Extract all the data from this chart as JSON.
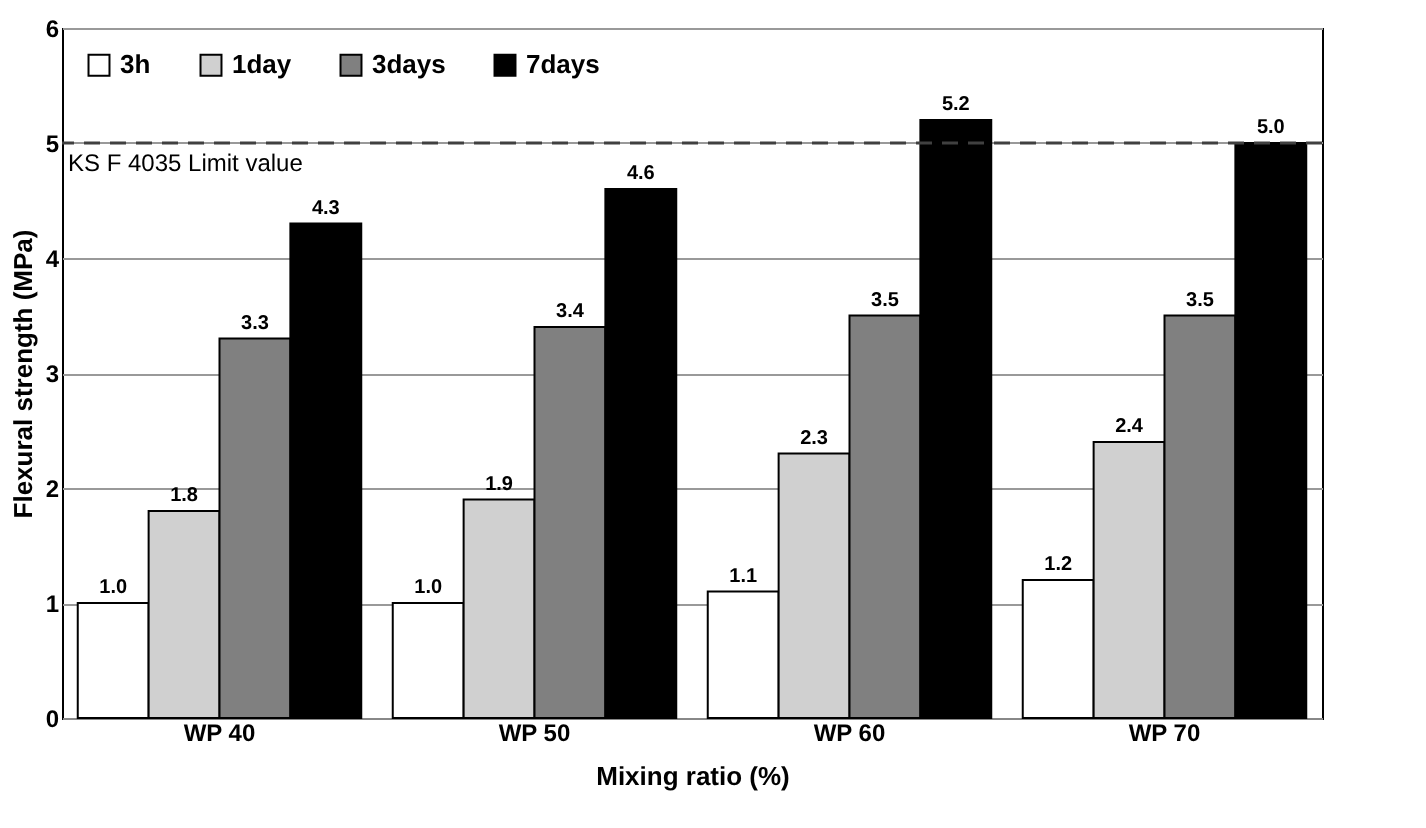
{
  "chart_data": {
    "type": "bar",
    "xlabel": "Mixing ratio (%)",
    "ylabel": "Flexural strength (MPa)",
    "categories": [
      "WP 40",
      "WP 50",
      "WP 60",
      "WP 70"
    ],
    "series": [
      {
        "name": "3h",
        "color": "#ffffff",
        "values": [
          1.0,
          1.0,
          1.1,
          1.2
        ],
        "value_labels": [
          "1.0",
          "1.0",
          "1.1",
          "1.2"
        ]
      },
      {
        "name": "1day",
        "color": "#d0d0d0",
        "values": [
          1.8,
          1.9,
          2.3,
          2.4
        ],
        "value_labels": [
          "1.8",
          "1.9",
          "2.3",
          "2.4"
        ]
      },
      {
        "name": "3days",
        "color": "#808080",
        "values": [
          3.3,
          3.4,
          3.5,
          3.5
        ],
        "value_labels": [
          "3.3",
          "3.4",
          "3.5",
          "3.5"
        ]
      },
      {
        "name": "7days",
        "color": "#000000",
        "values": [
          4.3,
          4.6,
          5.2,
          5.0
        ],
        "value_labels": [
          "4.3",
          "4.6",
          "5.2",
          "5.0"
        ]
      }
    ],
    "ylim": [
      0,
      6
    ],
    "yticks": [
      0,
      1,
      2,
      3,
      4,
      5,
      6
    ],
    "grid": "y",
    "legend": "top left",
    "ref_lines": [
      {
        "axis": "y",
        "value": 5,
        "label": "KS F 4035  Limit value",
        "line_style": "dashed",
        "color": "#404040"
      }
    ]
  }
}
